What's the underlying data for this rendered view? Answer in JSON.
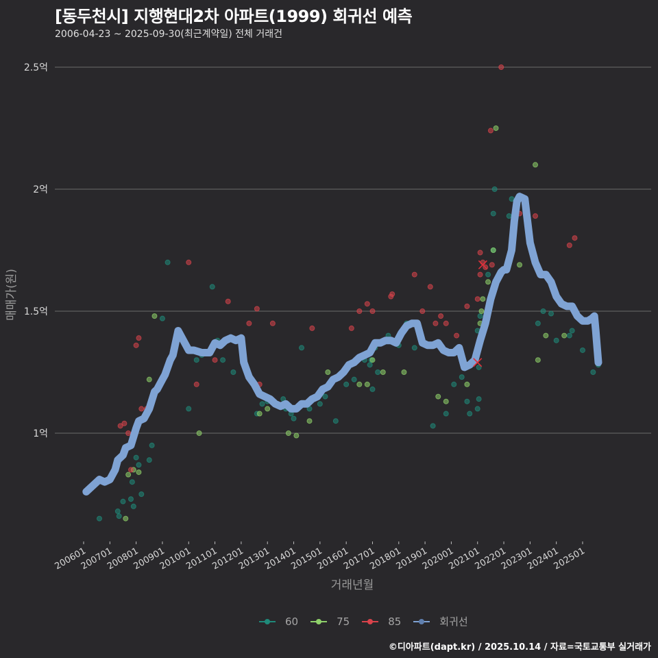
{
  "header": {
    "title": "[동두천시] 지행현대2차 아파트(1999) 회귀선 예측",
    "subtitle": "2006-04-23 ~ 2025-09-30(최근계약일) 전체 거래건"
  },
  "caption": "©디아파트(dapt.kr) / 2025.10.14 / 자료=국토교통부 실거래가",
  "colors": {
    "background": "#29282b",
    "grid": "#6b6b6b",
    "s60": "#1f8a7a",
    "s75": "#8fd16a",
    "s85": "#d9434b",
    "regression": "#7fa3d4"
  },
  "legend": [
    {
      "label": "60",
      "color": "#1f8a7a"
    },
    {
      "label": "75",
      "color": "#8fd16a"
    },
    {
      "label": "85",
      "color": "#d9434b"
    },
    {
      "label": "회귀선",
      "color": "#7fa3d4"
    }
  ],
  "chart_data": {
    "type": "scatter",
    "title": "[동두천시] 지행현대2차 아파트(1999) 회귀선 예측",
    "subtitle": "2006-04-23 ~ 2025-09-30(최근계약일) 전체 거래건",
    "xlabel": "거래년월",
    "ylabel": "매매가(원)",
    "x_ticks": [
      "200601",
      "200701",
      "200801",
      "200901",
      "201001",
      "201101",
      "201201",
      "201301",
      "201401",
      "201501",
      "201601",
      "201701",
      "201801",
      "201901",
      "202001",
      "202101",
      "202201",
      "202301",
      "202401",
      "202501"
    ],
    "y_ticks": [
      {
        "value": 1.0,
        "label": "1억"
      },
      {
        "value": 1.5,
        "label": "1.5억"
      },
      {
        "value": 2.0,
        "label": "2억"
      },
      {
        "value": 2.5,
        "label": "2.5억"
      }
    ],
    "ylim": [
      0.56,
      2.53
    ],
    "grid": "horizontal",
    "legend_position": "bottom",
    "units": "억원",
    "series": [
      {
        "name": "60",
        "points": [
          [
            2006.6,
            0.65
          ],
          [
            2007.3,
            0.68
          ],
          [
            2007.35,
            0.66
          ],
          [
            2007.5,
            0.72
          ],
          [
            2007.8,
            0.73
          ],
          [
            2007.9,
            0.7
          ],
          [
            2007.85,
            0.8
          ],
          [
            2008.0,
            0.9
          ],
          [
            2008.1,
            0.87
          ],
          [
            2008.2,
            0.75
          ],
          [
            2008.5,
            0.89
          ],
          [
            2008.6,
            0.95
          ],
          [
            2009.0,
            1.47
          ],
          [
            2009.2,
            1.7
          ],
          [
            2010.0,
            1.1
          ],
          [
            2010.3,
            1.3
          ],
          [
            2010.5,
            1.32
          ],
          [
            2010.9,
            1.6
          ],
          [
            2011.1,
            1.38
          ],
          [
            2011.3,
            1.3
          ],
          [
            2011.7,
            1.25
          ],
          [
            2012.6,
            1.08
          ],
          [
            2012.8,
            1.12
          ],
          [
            2013.0,
            1.13
          ],
          [
            2013.6,
            1.14
          ],
          [
            2013.7,
            1.1
          ],
          [
            2013.9,
            1.08
          ],
          [
            2014.0,
            1.06
          ],
          [
            2014.3,
            1.35
          ],
          [
            2014.6,
            1.1
          ],
          [
            2015.0,
            1.12
          ],
          [
            2015.2,
            1.15
          ],
          [
            2015.6,
            1.05
          ],
          [
            2016.0,
            1.2
          ],
          [
            2016.3,
            1.22
          ],
          [
            2016.7,
            1.3
          ],
          [
            2016.9,
            1.28
          ],
          [
            2016.95,
            1.3
          ],
          [
            2017.0,
            1.18
          ],
          [
            2017.1,
            1.35
          ],
          [
            2017.2,
            1.25
          ],
          [
            2017.6,
            1.4
          ],
          [
            2018.0,
            1.36
          ],
          [
            2018.3,
            1.45
          ],
          [
            2018.6,
            1.35
          ],
          [
            2019.0,
            1.37
          ],
          [
            2019.3,
            1.03
          ],
          [
            2019.8,
            1.08
          ],
          [
            2020.1,
            1.2
          ],
          [
            2020.4,
            1.23
          ],
          [
            2020.6,
            1.13
          ],
          [
            2020.7,
            1.08
          ],
          [
            2021.0,
            1.42
          ],
          [
            2021.05,
            1.27
          ],
          [
            2021.1,
            1.48
          ],
          [
            2021.0,
            1.1
          ],
          [
            2021.05,
            1.14
          ],
          [
            2021.4,
            1.65
          ],
          [
            2021.6,
            1.75
          ],
          [
            2021.65,
            2.0
          ],
          [
            2021.6,
            1.9
          ],
          [
            2022.2,
            1.89
          ],
          [
            2022.3,
            1.96
          ],
          [
            2023.3,
            1.45
          ],
          [
            2023.5,
            1.5
          ],
          [
            2023.8,
            1.49
          ],
          [
            2024.5,
            1.4
          ],
          [
            2024.6,
            1.42
          ],
          [
            2024.0,
            1.38
          ],
          [
            2025.0,
            1.34
          ],
          [
            2025.4,
            1.25
          ],
          [
            2025.6,
            1.28
          ]
        ]
      },
      {
        "name": "75",
        "points": [
          [
            2007.6,
            0.65
          ],
          [
            2007.7,
            0.83
          ],
          [
            2007.9,
            0.85
          ],
          [
            2008.1,
            0.84
          ],
          [
            2008.5,
            1.22
          ],
          [
            2008.7,
            1.48
          ],
          [
            2010.4,
            1.0
          ],
          [
            2012.7,
            1.08
          ],
          [
            2013.0,
            1.1
          ],
          [
            2013.8,
            1.0
          ],
          [
            2014.1,
            0.99
          ],
          [
            2014.6,
            1.05
          ],
          [
            2015.3,
            1.25
          ],
          [
            2016.5,
            1.2
          ],
          [
            2016.8,
            1.2
          ],
          [
            2017.4,
            1.25
          ],
          [
            2017.0,
            1.3
          ],
          [
            2018.2,
            1.25
          ],
          [
            2019.5,
            1.15
          ],
          [
            2019.8,
            1.13
          ],
          [
            2020.6,
            1.2
          ],
          [
            2021.1,
            1.45
          ],
          [
            2021.15,
            1.5
          ],
          [
            2021.2,
            1.55
          ],
          [
            2021.4,
            1.62
          ],
          [
            2021.6,
            1.75
          ],
          [
            2021.7,
            2.25
          ],
          [
            2022.4,
            1.9
          ],
          [
            2022.6,
            1.69
          ],
          [
            2023.2,
            2.1
          ],
          [
            2023.3,
            1.3
          ],
          [
            2023.6,
            1.4
          ],
          [
            2024.3,
            1.4
          ]
        ]
      },
      {
        "name": "85",
        "points": [
          [
            2007.4,
            1.03
          ],
          [
            2007.55,
            1.04
          ],
          [
            2007.7,
            1.0
          ],
          [
            2007.8,
            0.85
          ],
          [
            2008.2,
            1.1
          ],
          [
            2008.4,
            1.1
          ],
          [
            2008.0,
            1.36
          ],
          [
            2008.1,
            1.39
          ],
          [
            2010.0,
            1.7
          ],
          [
            2010.3,
            1.2
          ],
          [
            2011.0,
            1.3
          ],
          [
            2011.5,
            1.54
          ],
          [
            2012.3,
            1.45
          ],
          [
            2012.6,
            1.51
          ],
          [
            2012.7,
            1.2
          ],
          [
            2013.2,
            1.45
          ],
          [
            2014.7,
            1.43
          ],
          [
            2016.2,
            1.43
          ],
          [
            2016.5,
            1.5
          ],
          [
            2016.8,
            1.53
          ],
          [
            2017.0,
            1.5
          ],
          [
            2017.7,
            1.56
          ],
          [
            2017.75,
            1.57
          ],
          [
            2018.6,
            1.65
          ],
          [
            2018.9,
            1.5
          ],
          [
            2019.2,
            1.6
          ],
          [
            2019.4,
            1.45
          ],
          [
            2019.6,
            1.48
          ],
          [
            2019.8,
            1.45
          ],
          [
            2020.2,
            1.4
          ],
          [
            2020.6,
            1.52
          ],
          [
            2021.0,
            1.55
          ],
          [
            2021.1,
            1.65
          ],
          [
            2021.2,
            1.7
          ],
          [
            2021.1,
            1.74
          ],
          [
            2021.3,
            1.68
          ],
          [
            2021.55,
            1.69
          ],
          [
            2021.5,
            2.24
          ],
          [
            2021.9,
            2.5
          ],
          [
            2022.8,
            1.95
          ],
          [
            2022.6,
            1.9
          ],
          [
            2023.2,
            1.89
          ],
          [
            2024.5,
            1.77
          ],
          [
            2024.7,
            1.8
          ]
        ]
      },
      {
        "name": "회귀선",
        "type": "line",
        "x": [
          2006.1,
          2006.3,
          2006.5,
          2006.6,
          2006.8,
          2007.0,
          2007.2,
          2007.3,
          2007.5,
          2007.6,
          2007.8,
          2008.0,
          2008.1,
          2008.3,
          2008.5,
          2008.7,
          2008.8,
          2009.0,
          2009.1,
          2009.3,
          2009.4,
          2009.6,
          2009.8,
          2010.0,
          2010.2,
          2010.5,
          2010.8,
          2011.0,
          2011.2,
          2011.4,
          2011.6,
          2011.8,
          2012.0,
          2012.1,
          2012.3,
          2012.5,
          2012.7,
          2012.9,
          2013.1,
          2013.3,
          2013.5,
          2013.7,
          2013.9,
          2014.1,
          2014.3,
          2014.5,
          2014.7,
          2014.9,
          2015.1,
          2015.3,
          2015.5,
          2015.7,
          2015.9,
          2016.1,
          2016.3,
          2016.5,
          2016.7,
          2016.9,
          2017.1,
          2017.3,
          2017.5,
          2017.7,
          2017.9,
          2018.1,
          2018.3,
          2018.5,
          2018.7,
          2018.9,
          2019.1,
          2019.3,
          2019.5,
          2019.7,
          2019.9,
          2020.1,
          2020.3,
          2020.5,
          2020.7,
          2020.9,
          2021.1,
          2021.3,
          2021.5,
          2021.7,
          2021.9,
          2022.0,
          2022.1,
          2022.3,
          2022.4,
          2022.5,
          2022.6,
          2022.8,
          2023.0,
          2023.2,
          2023.4,
          2023.6,
          2023.8,
          2024.0,
          2024.2,
          2024.4,
          2024.6,
          2024.8,
          2025.0,
          2025.2,
          2025.35,
          2025.45,
          2025.5,
          2025.6
        ],
        "y": [
          0.76,
          0.78,
          0.8,
          0.81,
          0.8,
          0.81,
          0.85,
          0.89,
          0.91,
          0.94,
          0.95,
          1.02,
          1.05,
          1.06,
          1.1,
          1.17,
          1.18,
          1.22,
          1.24,
          1.3,
          1.32,
          1.42,
          1.38,
          1.34,
          1.34,
          1.33,
          1.33,
          1.37,
          1.36,
          1.38,
          1.39,
          1.38,
          1.39,
          1.29,
          1.23,
          1.2,
          1.16,
          1.15,
          1.14,
          1.12,
          1.11,
          1.12,
          1.1,
          1.1,
          1.12,
          1.12,
          1.14,
          1.15,
          1.18,
          1.19,
          1.22,
          1.23,
          1.25,
          1.28,
          1.29,
          1.31,
          1.32,
          1.33,
          1.37,
          1.37,
          1.38,
          1.38,
          1.37,
          1.41,
          1.44,
          1.45,
          1.45,
          1.37,
          1.36,
          1.36,
          1.37,
          1.34,
          1.33,
          1.33,
          1.35,
          1.27,
          1.28,
          1.3,
          1.38,
          1.45,
          1.55,
          1.62,
          1.66,
          1.67,
          1.67,
          1.75,
          1.87,
          1.95,
          1.97,
          1.96,
          1.78,
          1.7,
          1.65,
          1.65,
          1.62,
          1.56,
          1.53,
          1.52,
          1.52,
          1.48,
          1.46,
          1.46,
          1.47,
          1.48,
          1.42,
          1.29
        ]
      }
    ],
    "annotations": [
      {
        "type": "x-marker",
        "x": 2021.0,
        "y": 1.29,
        "color": "#e0303a"
      },
      {
        "type": "x-marker",
        "x": 2021.2,
        "y": 1.69,
        "color": "#e0303a"
      }
    ]
  }
}
